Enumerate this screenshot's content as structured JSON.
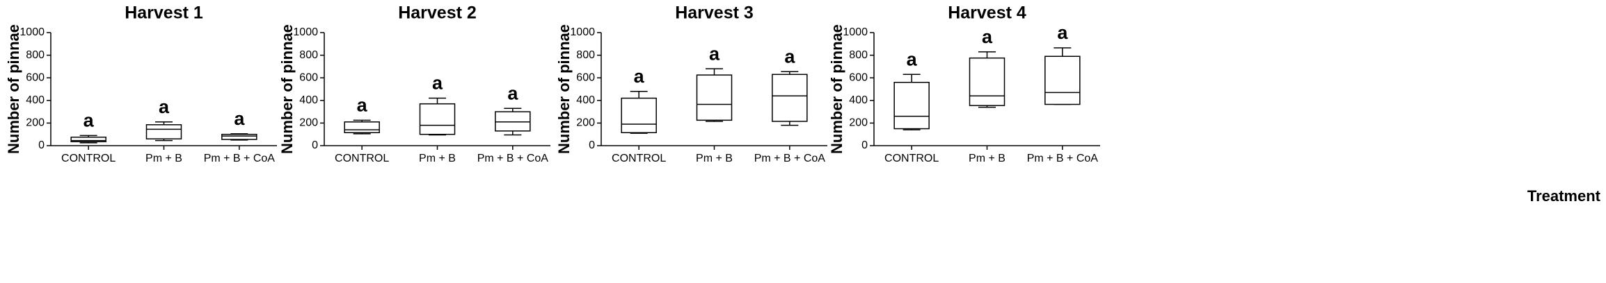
{
  "chart_data": [
    {
      "type": "box",
      "title": "Harvest 1",
      "ylabel": "Number of pinnae",
      "categories": [
        "CONTROL",
        "Pm + B",
        "Pm + B + CoA"
      ],
      "min": [
        25,
        45,
        50
      ],
      "q1": [
        35,
        60,
        55
      ],
      "median": [
        45,
        145,
        85
      ],
      "q3": [
        75,
        185,
        100
      ],
      "max": [
        90,
        210,
        105
      ],
      "letters": [
        "a",
        "a",
        "a"
      ],
      "ylim": [
        0,
        1000
      ],
      "yticks": [
        0,
        200,
        400,
        600,
        800,
        1000
      ]
    },
    {
      "type": "box",
      "title": "Harvest 2",
      "ylabel": "Number of pinnae",
      "categories": [
        "CONTROL",
        "Pm + B",
        "Pm + B + CoA"
      ],
      "min": [
        105,
        95,
        95
      ],
      "q1": [
        115,
        100,
        130
      ],
      "median": [
        140,
        180,
        210
      ],
      "q3": [
        210,
        370,
        300
      ],
      "max": [
        225,
        420,
        330
      ],
      "letters": [
        "a",
        "a",
        "a"
      ],
      "ylim": [
        0,
        1000
      ],
      "yticks": [
        0,
        200,
        400,
        600,
        800,
        1000
      ]
    },
    {
      "type": "box",
      "title": "Harvest 3",
      "ylabel": "Number of pinnae",
      "categories": [
        "CONTROL",
        "Pm + B",
        "Pm + B + CoA"
      ],
      "min": [
        110,
        215,
        180
      ],
      "q1": [
        115,
        225,
        215
      ],
      "median": [
        190,
        365,
        440
      ],
      "q3": [
        420,
        625,
        630
      ],
      "max": [
        480,
        680,
        655
      ],
      "letters": [
        "a",
        "a",
        "a"
      ],
      "ylim": [
        0,
        1000
      ],
      "yticks": [
        0,
        200,
        400,
        600,
        800,
        1000
      ]
    },
    {
      "type": "box",
      "title": "Harvest 4",
      "ylabel": "Number of pinnae",
      "xlabel": "Treatment",
      "categories": [
        "CONTROL",
        "Pm + B",
        "Pm + B + CoA"
      ],
      "min": [
        140,
        340,
        365
      ],
      "q1": [
        150,
        355,
        365
      ],
      "median": [
        260,
        440,
        470
      ],
      "q3": [
        560,
        775,
        790
      ],
      "max": [
        630,
        830,
        865
      ],
      "letters": [
        "a",
        "a",
        "a"
      ],
      "ylim": [
        0,
        1000
      ],
      "yticks": [
        0,
        200,
        400,
        600,
        800,
        1000
      ]
    }
  ]
}
